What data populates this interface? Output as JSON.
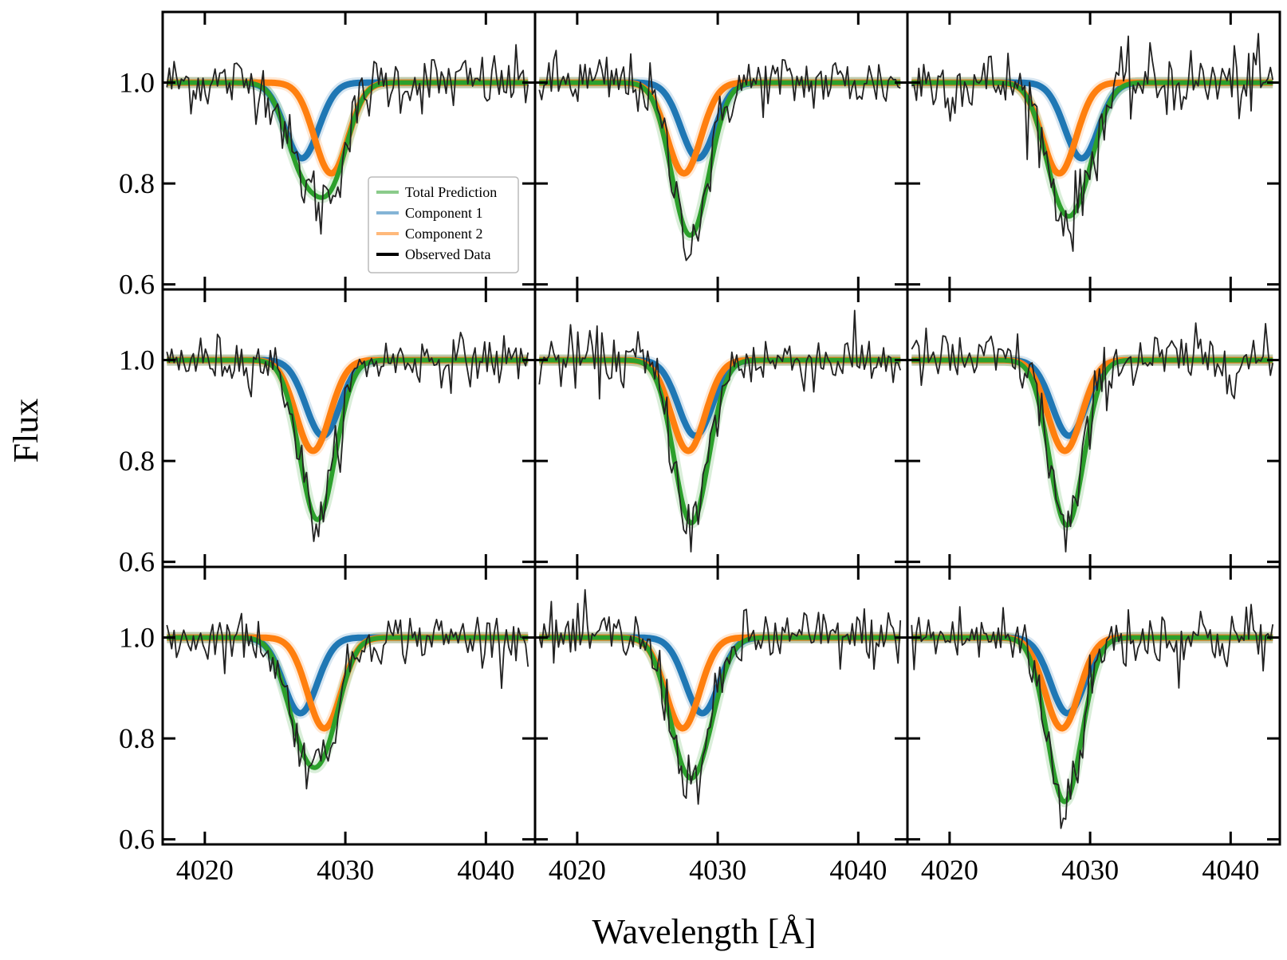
{
  "figure": {
    "xlabel": "Wavelength [Å]",
    "ylabel": "Flux"
  },
  "chart_data": {
    "type": "line",
    "layout": "3x3 grid of panels with shared axes",
    "xlabel": "Wavelength [Å]",
    "ylabel": "Flux",
    "xlim": [
      4017,
      4043.5
    ],
    "ylim": [
      0.59,
      1.14
    ],
    "x_ticks": [
      4020,
      4030,
      4040
    ],
    "y_ticks": [
      0.6,
      0.8,
      1.0
    ],
    "x_tick_labels": [
      "4020",
      "4030",
      "4040"
    ],
    "y_tick_labels": [
      "0.6",
      "0.8",
      "1.0"
    ],
    "legend": {
      "location": "inside top-left panel, lower right",
      "entries": [
        {
          "label": "Total Prediction",
          "color": "#2ca02c"
        },
        {
          "label": "Component 1",
          "color": "#1f77b4"
        },
        {
          "label": "Component 2",
          "color": "#ff7f0e"
        },
        {
          "label": "Observed Data",
          "color": "#000000"
        }
      ]
    },
    "series_styles": {
      "total_prediction": {
        "color": "#2ca02c"
      },
      "component_1": {
        "color": "#1f77b4"
      },
      "component_2": {
        "color": "#ff7f0e"
      },
      "observed_data": {
        "color": "#222222"
      }
    },
    "model": "flux = 1 − depth·exp(−(λ − center)² / (2·sigma²)) per component; total = 1 − (1 − c1) − (1 − c2)",
    "panels": [
      {
        "row": 0,
        "col": 0,
        "component_1": {
          "center": 4026.9,
          "depth": 0.15,
          "sigma": 1.2
        },
        "component_2": {
          "center": 4029.0,
          "depth": 0.18,
          "sigma": 1.2
        },
        "observed_noise": 0.03,
        "observed_min": 0.7
      },
      {
        "row": 0,
        "col": 1,
        "component_1": {
          "center": 4028.6,
          "depth": 0.15,
          "sigma": 1.2
        },
        "component_2": {
          "center": 4027.6,
          "depth": 0.18,
          "sigma": 1.2
        },
        "observed_noise": 0.03,
        "observed_min": 0.66
      },
      {
        "row": 0,
        "col": 2,
        "component_1": {
          "center": 4029.4,
          "depth": 0.15,
          "sigma": 1.2
        },
        "component_2": {
          "center": 4027.8,
          "depth": 0.18,
          "sigma": 1.2
        },
        "observed_noise": 0.035,
        "observed_min": 0.71
      },
      {
        "row": 1,
        "col": 0,
        "component_1": {
          "center": 4028.4,
          "depth": 0.15,
          "sigma": 1.2
        },
        "component_2": {
          "center": 4027.7,
          "depth": 0.18,
          "sigma": 1.2
        },
        "observed_noise": 0.025,
        "observed_min": 0.65
      },
      {
        "row": 1,
        "col": 1,
        "component_1": {
          "center": 4028.4,
          "depth": 0.15,
          "sigma": 1.2
        },
        "component_2": {
          "center": 4027.9,
          "depth": 0.18,
          "sigma": 1.2
        },
        "observed_noise": 0.03,
        "observed_min": 0.62
      },
      {
        "row": 1,
        "col": 2,
        "component_1": {
          "center": 4028.5,
          "depth": 0.15,
          "sigma": 1.2
        },
        "component_2": {
          "center": 4028.2,
          "depth": 0.18,
          "sigma": 1.2
        },
        "observed_noise": 0.03,
        "observed_min": 0.62
      },
      {
        "row": 2,
        "col": 0,
        "component_1": {
          "center": 4026.8,
          "depth": 0.15,
          "sigma": 1.2
        },
        "component_2": {
          "center": 4028.5,
          "depth": 0.18,
          "sigma": 1.2
        },
        "observed_noise": 0.025,
        "observed_min": 0.76
      },
      {
        "row": 2,
        "col": 1,
        "component_1": {
          "center": 4028.9,
          "depth": 0.15,
          "sigma": 1.2
        },
        "component_2": {
          "center": 4027.5,
          "depth": 0.18,
          "sigma": 1.2
        },
        "observed_noise": 0.03,
        "observed_min": 0.71
      },
      {
        "row": 2,
        "col": 2,
        "component_1": {
          "center": 4028.4,
          "depth": 0.15,
          "sigma": 1.2
        },
        "component_2": {
          "center": 4028.0,
          "depth": 0.18,
          "sigma": 1.2
        },
        "observed_noise": 0.035,
        "observed_min": 0.64
      }
    ]
  }
}
